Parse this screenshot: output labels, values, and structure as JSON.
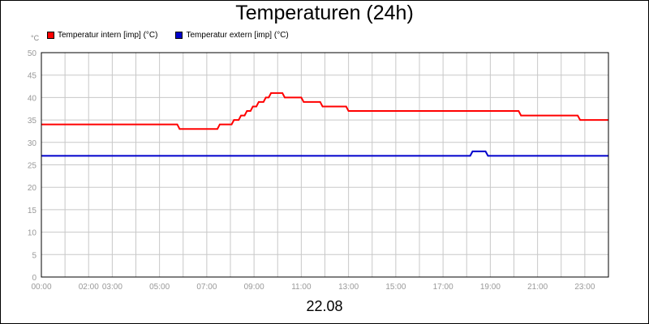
{
  "chart_data": {
    "type": "line",
    "title": "Temperaturen (24h)",
    "date_label": "22.08",
    "y_unit": "°C",
    "ylim": [
      0,
      50
    ],
    "y_ticks": [
      0,
      5,
      10,
      15,
      20,
      25,
      30,
      35,
      40,
      45,
      50
    ],
    "xlim": [
      0,
      24
    ],
    "x_ticks": [
      {
        "label": "00:00",
        "x": 0
      },
      {
        "label": "02:00",
        "x": 2
      },
      {
        "label": "03:00",
        "x": 3
      },
      {
        "label": "05:00",
        "x": 5
      },
      {
        "label": "07:00",
        "x": 7
      },
      {
        "label": "09:00",
        "x": 9
      },
      {
        "label": "11:00",
        "x": 11
      },
      {
        "label": "13:00",
        "x": 13
      },
      {
        "label": "15:00",
        "x": 15
      },
      {
        "label": "17:00",
        "x": 17
      },
      {
        "label": "19:00",
        "x": 19
      },
      {
        "label": "21:00",
        "x": 21
      },
      {
        "label": "23:00",
        "x": 23
      }
    ],
    "grid": true,
    "legend_position": "top-left",
    "series": [
      {
        "name": "Temperatur intern [imp] (°C)",
        "color": "#ff0000",
        "points": [
          [
            0,
            34
          ],
          [
            5.75,
            34
          ],
          [
            5.85,
            33
          ],
          [
            7.45,
            33
          ],
          [
            7.55,
            34
          ],
          [
            8.05,
            34
          ],
          [
            8.15,
            35
          ],
          [
            8.35,
            35
          ],
          [
            8.45,
            36
          ],
          [
            8.6,
            36
          ],
          [
            8.7,
            37
          ],
          [
            8.85,
            37
          ],
          [
            8.95,
            38
          ],
          [
            9.1,
            38
          ],
          [
            9.2,
            39
          ],
          [
            9.4,
            39
          ],
          [
            9.5,
            40
          ],
          [
            9.62,
            40
          ],
          [
            9.72,
            41
          ],
          [
            10.2,
            41
          ],
          [
            10.3,
            40
          ],
          [
            11.0,
            40
          ],
          [
            11.1,
            39
          ],
          [
            11.8,
            39
          ],
          [
            11.9,
            38
          ],
          [
            12.9,
            38
          ],
          [
            13.0,
            37
          ],
          [
            20.2,
            37
          ],
          [
            20.3,
            36
          ],
          [
            22.7,
            36
          ],
          [
            22.8,
            35
          ],
          [
            24,
            35
          ]
        ]
      },
      {
        "name": "Temperatur extern [imp] (°C)",
        "color": "#0000cc",
        "points": [
          [
            0,
            27
          ],
          [
            18.15,
            27
          ],
          [
            18.25,
            28
          ],
          [
            18.8,
            28
          ],
          [
            18.9,
            27
          ],
          [
            24,
            27
          ]
        ]
      }
    ]
  }
}
